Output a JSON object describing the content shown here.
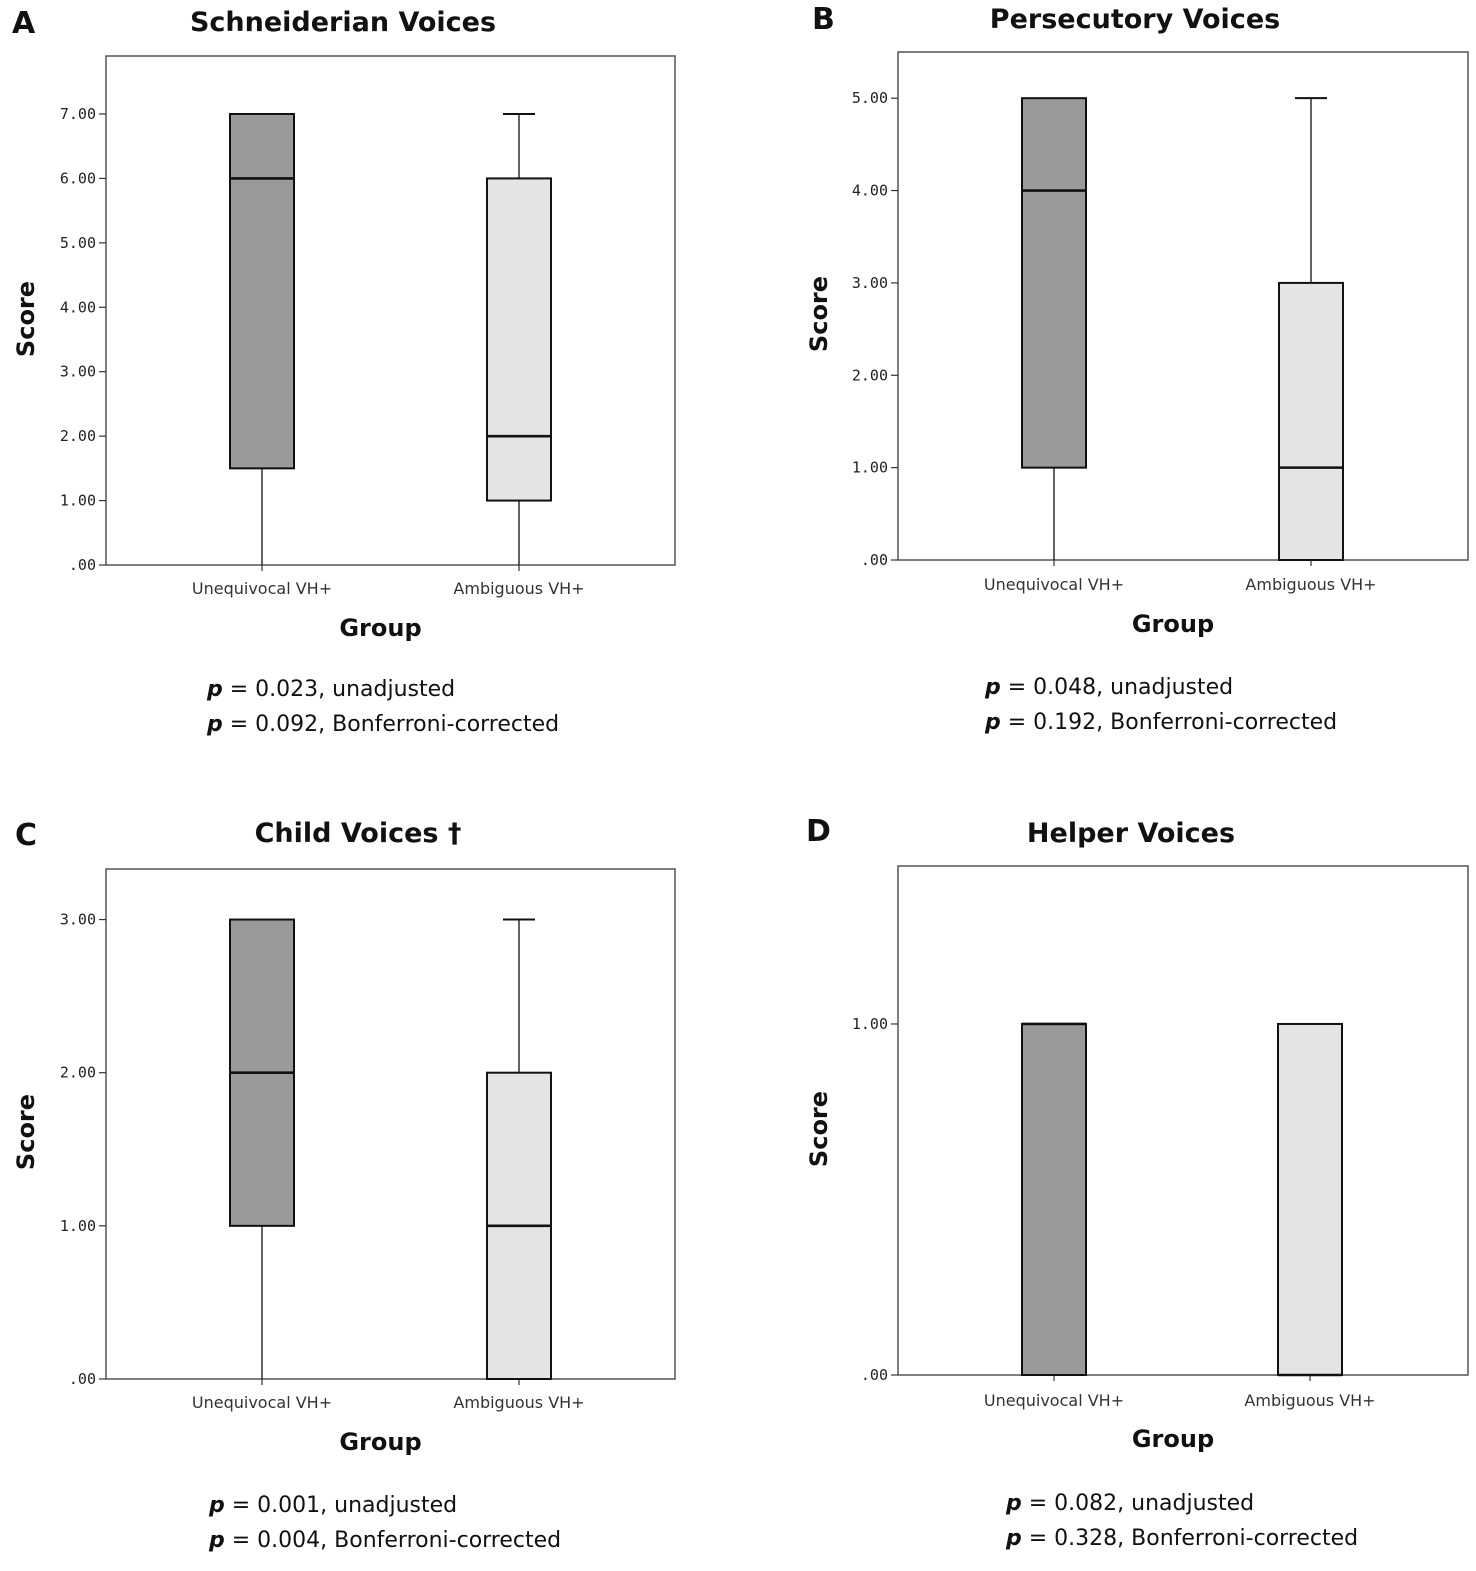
{
  "colors": {
    "unequivocal": "#9a9a9a",
    "ambiguous": "#e4e4e4",
    "line": "#111111"
  },
  "chart_data": [
    {
      "type": "boxplot",
      "panel": "A",
      "title": "Schneiderian Voices",
      "xlabel": "Group",
      "ylabel": "Score",
      "ylim": [
        0,
        7.9
      ],
      "yticks": [
        0,
        1,
        2,
        3,
        4,
        5,
        6,
        7
      ],
      "ytick_labels": [
        ".00",
        "1.00",
        "2.00",
        "3.00",
        "4.00",
        "5.00",
        "6.00",
        "7.00"
      ],
      "categories": [
        "Unequivocal VH+",
        "Ambiguous VH+"
      ],
      "boxes": [
        {
          "min": 0,
          "q1": 1.5,
          "median": 6,
          "q3": 7,
          "max": 7
        },
        {
          "min": 0,
          "q1": 1,
          "median": 2,
          "q3": 6,
          "max": 7
        }
      ],
      "p_unadjusted": "= 0.023, unadjusted",
      "p_corrected": "= 0.092, Bonferroni-corrected"
    },
    {
      "type": "boxplot",
      "panel": "B",
      "title": "Persecutory Voices",
      "xlabel": "Group",
      "ylabel": "Score",
      "ylim": [
        0,
        5.5
      ],
      "yticks": [
        0,
        1,
        2,
        3,
        4,
        5
      ],
      "ytick_labels": [
        ".00",
        "1.00",
        "2.00",
        "3.00",
        "4.00",
        "5.00"
      ],
      "categories": [
        "Unequivocal VH+",
        "Ambiguous VH+"
      ],
      "boxes": [
        {
          "min": 0,
          "q1": 1,
          "median": 4,
          "q3": 5,
          "max": 5
        },
        {
          "min": 0,
          "q1": 0,
          "median": 1,
          "q3": 3,
          "max": 5
        }
      ],
      "p_unadjusted": "= 0.048, unadjusted",
      "p_corrected": "= 0.192, Bonferroni-corrected"
    },
    {
      "type": "boxplot",
      "panel": "C",
      "title": "Child Voices †",
      "xlabel": "Group",
      "ylabel": "Score",
      "ylim": [
        0,
        3.33
      ],
      "yticks": [
        0,
        1,
        2,
        3
      ],
      "ytick_labels": [
        ".00",
        "1.00",
        "2.00",
        "3.00"
      ],
      "categories": [
        "Unequivocal VH+",
        "Ambiguous VH+"
      ],
      "boxes": [
        {
          "min": 0,
          "q1": 1,
          "median": 2,
          "q3": 3,
          "max": 3
        },
        {
          "min": 0,
          "q1": 0,
          "median": 1,
          "q3": 2,
          "max": 3
        }
      ],
      "p_unadjusted": "= 0.001, unadjusted",
      "p_corrected": "= 0.004, Bonferroni-corrected"
    },
    {
      "type": "boxplot",
      "panel": "D",
      "title": "Helper Voices",
      "xlabel": "Group",
      "ylabel": "Score",
      "ylim": [
        0,
        1.45
      ],
      "yticks": [
        0,
        1
      ],
      "ytick_labels": [
        ".00",
        "1.00"
      ],
      "categories": [
        "Unequivocal VH+",
        "Ambiguous VH+"
      ],
      "boxes": [
        {
          "min": 0,
          "q1": 0,
          "median": 1,
          "q3": 1,
          "max": 1
        },
        {
          "min": 0,
          "q1": 0,
          "median": 0,
          "q3": 1,
          "max": 1
        }
      ],
      "p_unadjusted": "= 0.082, unadjusted",
      "p_corrected": "= 0.328, Bonferroni-corrected"
    }
  ],
  "p_symbol": "p"
}
